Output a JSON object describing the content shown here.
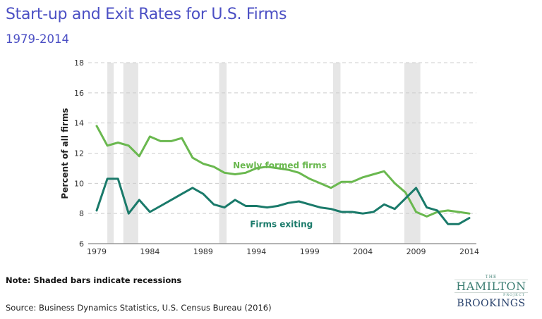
{
  "header": {
    "title": "Start-up and Exit Rates for U.S. Firms",
    "subtitle": "1979-2014"
  },
  "footer": {
    "note": "Note: Shaded bars indicate recessions",
    "source": "Source: Business Dynamics Statistics, U.S. Census Bureau (2016)"
  },
  "logo": {
    "the": "THE",
    "hamilton": "HAMILTON",
    "project": "PROJECT",
    "brookings": "BROOKINGS"
  },
  "chart_data": {
    "type": "line",
    "title": "Start-up and Exit Rates for U.S. Firms",
    "subtitle": "1979-2014",
    "xlabel": "",
    "ylabel": "Percent of all firms",
    "xlim": [
      1979,
      2014
    ],
    "ylim": [
      6,
      18
    ],
    "x_ticks": [
      1979,
      1984,
      1989,
      1994,
      1999,
      2004,
      2009,
      2014
    ],
    "y_ticks": [
      6,
      8,
      10,
      12,
      14,
      16,
      18
    ],
    "grid": "horizontal-dashed",
    "x": [
      1979,
      1980,
      1981,
      1982,
      1983,
      1984,
      1985,
      1986,
      1987,
      1988,
      1989,
      1990,
      1991,
      1992,
      1993,
      1994,
      1995,
      1996,
      1997,
      1998,
      1999,
      2000,
      2001,
      2002,
      2003,
      2004,
      2005,
      2006,
      2007,
      2008,
      2009,
      2010,
      2011,
      2012,
      2013,
      2014
    ],
    "series": [
      {
        "name": "Newly formed firms",
        "color": "#6ab84f",
        "label_at": [
          1991.8,
          11.0
        ],
        "values": [
          13.8,
          12.5,
          12.7,
          12.5,
          11.8,
          13.1,
          12.8,
          12.8,
          13.0,
          11.7,
          11.3,
          11.1,
          10.7,
          10.6,
          10.7,
          11.0,
          11.1,
          11.0,
          10.9,
          10.7,
          10.3,
          10.0,
          9.7,
          10.1,
          10.1,
          10.4,
          10.6,
          10.8,
          10.0,
          9.4,
          8.1,
          7.8,
          8.1,
          8.2,
          8.1,
          8.0
        ]
      },
      {
        "name": "Firms exiting",
        "color": "#1a7a6a",
        "label_at": [
          1993.4,
          7.1
        ],
        "values": [
          8.2,
          10.3,
          10.3,
          8.0,
          8.9,
          8.1,
          8.5,
          8.9,
          9.3,
          9.7,
          9.3,
          8.6,
          8.4,
          8.9,
          8.5,
          8.5,
          8.4,
          8.5,
          8.7,
          8.8,
          8.6,
          8.4,
          8.3,
          8.1,
          8.1,
          8.0,
          8.1,
          8.6,
          8.3,
          9.0,
          9.7,
          8.4,
          8.2,
          7.3,
          7.3,
          7.7
        ]
      }
    ],
    "recessions": [
      [
        1980.0,
        1980.6
      ],
      [
        1981.5,
        1982.9
      ],
      [
        1990.5,
        1991.2
      ],
      [
        2001.2,
        2001.9
      ],
      [
        2007.9,
        2009.4
      ]
    ],
    "recession_color": "#e6e6e6",
    "annotation": "Shaded bars indicate recessions"
  }
}
